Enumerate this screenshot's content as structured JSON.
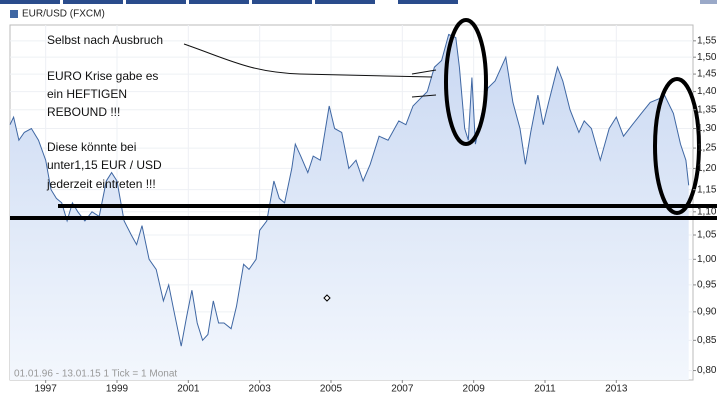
{
  "chart_data": {
    "type": "area",
    "legend": "EUR/USD (FXCM)",
    "footer": "01.01.96 - 13.01.15  1 Tick = 1 Monat",
    "annotations": [
      "Selbst nach Ausbruch",
      "EURO Krise gabe es",
      "ein HEFTIGEN",
      "REBOUND !!!",
      "Diese könnte bei",
      "unter1,15 EUR / USD",
      "jederzeit eintreten !!!"
    ],
    "color": "#3f67a3",
    "log_y": true,
    "grid": true,
    "xlim": [
      1996,
      2015.15
    ],
    "ylim": [
      0.785,
      1.6
    ],
    "xticks": [
      1997,
      1999,
      2001,
      2003,
      2005,
      2007,
      2009,
      2011,
      2013
    ],
    "yticks": [
      {
        "value": 0.8,
        "label": "0,80"
      },
      {
        "value": 0.85,
        "label": "0,85"
      },
      {
        "value": 0.9,
        "label": "0,90"
      },
      {
        "value": 0.95,
        "label": "0,95"
      },
      {
        "value": 1.0,
        "label": "1,00"
      },
      {
        "value": 1.05,
        "label": "1,05"
      },
      {
        "value": 1.1,
        "label": "1,10"
      },
      {
        "value": 1.15,
        "label": "1,15"
      },
      {
        "value": 1.2,
        "label": "1,20"
      },
      {
        "value": 1.25,
        "label": "1,25"
      },
      {
        "value": 1.3,
        "label": "1,30"
      },
      {
        "value": 1.35,
        "label": "1,35"
      },
      {
        "value": 1.4,
        "label": "1,40"
      },
      {
        "value": 1.45,
        "label": "1,45"
      },
      {
        "value": 1.5,
        "label": "1,50"
      },
      {
        "value": 1.55,
        "label": "1,55"
      }
    ],
    "x": [
      1996.0,
      1996.1,
      1996.25,
      1996.4,
      1996.6,
      1996.8,
      1997.0,
      1997.15,
      1997.3,
      1997.45,
      1997.6,
      1997.75,
      1997.9,
      1998.1,
      1998.3,
      1998.5,
      1998.7,
      1998.85,
      1999.0,
      1999.2,
      1999.4,
      1999.55,
      1999.7,
      1999.9,
      2000.1,
      2000.3,
      2000.45,
      2000.6,
      2000.8,
      2000.95,
      2001.1,
      2001.25,
      2001.4,
      2001.55,
      2001.7,
      2001.85,
      2002.0,
      2002.2,
      2002.35,
      2002.55,
      2002.7,
      2002.9,
      2003.0,
      2003.2,
      2003.4,
      2003.55,
      2003.7,
      2003.9,
      2004.0,
      2004.15,
      2004.35,
      2004.5,
      2004.7,
      2004.95,
      2005.1,
      2005.3,
      2005.5,
      2005.7,
      2005.9,
      2006.1,
      2006.35,
      2006.6,
      2006.9,
      2007.1,
      2007.3,
      2007.5,
      2007.7,
      2007.9,
      2008.1,
      2008.3,
      2008.5,
      2008.6,
      2008.75,
      2008.85,
      2008.95,
      2009.05,
      2009.2,
      2009.4,
      2009.6,
      2009.9,
      2010.1,
      2010.3,
      2010.45,
      2010.6,
      2010.8,
      2010.95,
      2011.1,
      2011.35,
      2011.5,
      2011.7,
      2011.95,
      2012.1,
      2012.3,
      2012.55,
      2012.8,
      2013.0,
      2013.2,
      2013.45,
      2013.7,
      2013.95,
      2014.2,
      2014.35,
      2014.6,
      2014.8,
      2014.95,
      2015.03
    ],
    "values": [
      1.31,
      1.33,
      1.27,
      1.29,
      1.3,
      1.27,
      1.22,
      1.15,
      1.13,
      1.12,
      1.08,
      1.12,
      1.1,
      1.08,
      1.1,
      1.09,
      1.17,
      1.19,
      1.17,
      1.08,
      1.05,
      1.03,
      1.07,
      1.0,
      0.98,
      0.92,
      0.95,
      0.9,
      0.84,
      0.89,
      0.94,
      0.88,
      0.85,
      0.86,
      0.92,
      0.88,
      0.88,
      0.87,
      0.91,
      0.99,
      0.98,
      1.0,
      1.06,
      1.08,
      1.17,
      1.13,
      1.12,
      1.2,
      1.26,
      1.23,
      1.19,
      1.23,
      1.22,
      1.36,
      1.3,
      1.29,
      1.2,
      1.22,
      1.17,
      1.21,
      1.28,
      1.27,
      1.32,
      1.31,
      1.36,
      1.38,
      1.4,
      1.47,
      1.49,
      1.57,
      1.56,
      1.47,
      1.3,
      1.27,
      1.44,
      1.26,
      1.33,
      1.41,
      1.43,
      1.5,
      1.37,
      1.3,
      1.21,
      1.29,
      1.39,
      1.31,
      1.37,
      1.47,
      1.43,
      1.35,
      1.29,
      1.32,
      1.3,
      1.22,
      1.3,
      1.33,
      1.28,
      1.31,
      1.34,
      1.37,
      1.38,
      1.39,
      1.34,
      1.26,
      1.22,
      1.16
    ]
  }
}
